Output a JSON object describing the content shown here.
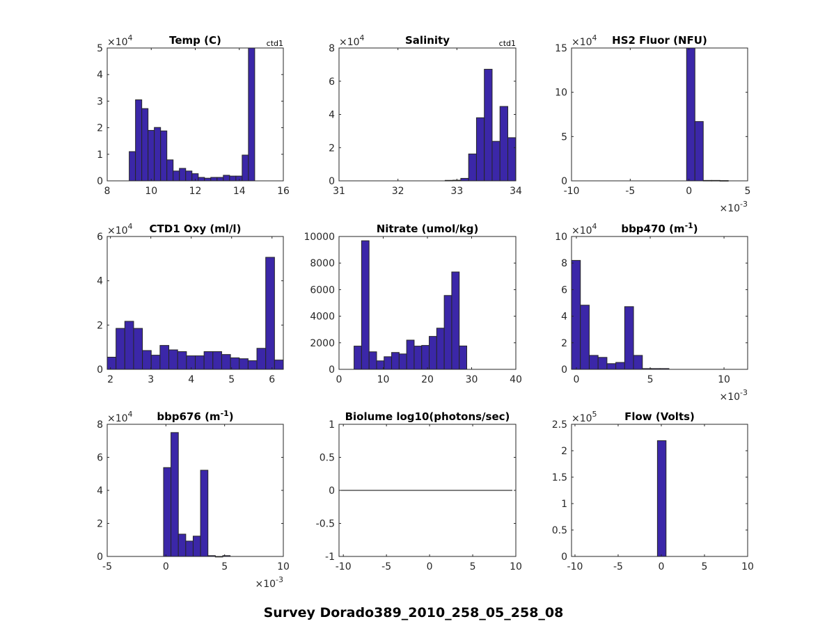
{
  "figure_title": "Survey Dorado389_2010_258_05_258_08",
  "bar_color": "#3b27a8",
  "edge_color": "#262626",
  "chart_data": [
    {
      "type": "bar",
      "title": "Temp (C)",
      "corner_tag": "ctd1",
      "xlim": [
        8,
        16
      ],
      "ylim": [
        0,
        5
      ],
      "y_multiplier": "×10",
      "y_exponent": "4",
      "x_multiplier": "",
      "x_exponent": "",
      "xticks": [
        8,
        10,
        12,
        14,
        16
      ],
      "xtick_labels": [
        "8",
        "10",
        "12",
        "14",
        "16"
      ],
      "yticks": [
        0,
        1,
        2,
        3,
        4,
        5
      ],
      "ytick_labels": [
        "0",
        "1",
        "2",
        "3",
        "4",
        "5"
      ],
      "bin_start": 9.0,
      "bin_width": 0.285,
      "values": [
        1.1,
        3.05,
        2.72,
        1.9,
        2.01,
        1.88,
        0.79,
        0.37,
        0.47,
        0.37,
        0.27,
        0.13,
        0.1,
        0.13,
        0.13,
        0.21,
        0.18,
        0.18,
        0.97,
        5.0
      ]
    },
    {
      "type": "bar",
      "title": "Salinity",
      "corner_tag": "ctd1",
      "xlim": [
        31,
        34
      ],
      "ylim": [
        0,
        8
      ],
      "y_multiplier": "×10",
      "y_exponent": "4",
      "x_multiplier": "",
      "x_exponent": "",
      "xticks": [
        31,
        32,
        33,
        34
      ],
      "xtick_labels": [
        "31",
        "32",
        "33",
        "34"
      ],
      "yticks": [
        0,
        2,
        4,
        6,
        8
      ],
      "ytick_labels": [
        "0",
        "2",
        "4",
        "6",
        "8"
      ],
      "bin_start": 32.8,
      "bin_width": 0.133,
      "values": [
        0.03,
        0.04,
        0.15,
        1.62,
        3.8,
        6.72,
        2.38,
        4.48,
        2.6
      ]
    },
    {
      "type": "bar",
      "title": "HS2 Fluor (NFU)",
      "corner_tag": "",
      "xlim": [
        -10,
        5
      ],
      "ylim": [
        0,
        15
      ],
      "y_multiplier": "×10",
      "y_exponent": "4",
      "x_multiplier": "×10",
      "x_exponent": "-3",
      "xticks": [
        -10,
        -5,
        0,
        5
      ],
      "xtick_labels": [
        "-10",
        "-5",
        "0",
        "5"
      ],
      "yticks": [
        0,
        5,
        10,
        15
      ],
      "ytick_labels": [
        "0",
        "5",
        "10",
        "15"
      ],
      "bin_start": -0.2,
      "bin_width": 0.71,
      "values": [
        15,
        6.7,
        0.05,
        0.05,
        0.03
      ]
    },
    {
      "type": "bar",
      "title": "CTD1 Oxy (ml/l)",
      "corner_tag": "",
      "xlim": [
        1.92,
        6.28
      ],
      "ylim": [
        0,
        6
      ],
      "y_multiplier": "×10",
      "y_exponent": "4",
      "x_multiplier": "",
      "x_exponent": "",
      "xticks": [
        2,
        3,
        4,
        5,
        6
      ],
      "xtick_labels": [
        "2",
        "3",
        "4",
        "5",
        "6"
      ],
      "yticks": [
        0,
        2,
        4,
        6
      ],
      "ytick_labels": [
        "0",
        "2",
        "4",
        "6"
      ],
      "bin_start": 1.92,
      "bin_width": 0.218,
      "values": [
        0.55,
        1.85,
        2.17,
        1.85,
        0.85,
        0.64,
        1.08,
        0.88,
        0.8,
        0.61,
        0.61,
        0.8,
        0.8,
        0.67,
        0.52,
        0.48,
        0.39,
        0.95,
        5.06,
        0.42
      ]
    },
    {
      "type": "bar",
      "title": "Nitrate (umol/kg)",
      "corner_tag": "",
      "xlim": [
        0,
        40
      ],
      "ylim": [
        0,
        10000
      ],
      "y_multiplier": "",
      "y_exponent": "",
      "x_multiplier": "",
      "x_exponent": "",
      "xticks": [
        0,
        10,
        20,
        30,
        40
      ],
      "xtick_labels": [
        "0",
        "10",
        "20",
        "30",
        "40"
      ],
      "yticks": [
        0,
        2000,
        4000,
        6000,
        8000,
        10000
      ],
      "ytick_labels": [
        "0",
        "2000",
        "4000",
        "6000",
        "8000",
        "10000"
      ],
      "bin_start": 3.4,
      "bin_width": 1.7,
      "values": [
        1750,
        9680,
        1320,
        640,
        950,
        1270,
        1160,
        2200,
        1750,
        1800,
        2480,
        3100,
        5560,
        7330,
        1760
      ]
    },
    {
      "type": "bar",
      "title": "bbp470 (m",
      "title_sup": "-1",
      "title_end": ")",
      "corner_tag": "",
      "xlim": [
        -0.33,
        11.6
      ],
      "ylim": [
        0,
        10
      ],
      "y_multiplier": "×10",
      "y_exponent": "4",
      "x_multiplier": "×10",
      "x_exponent": "-3",
      "xticks": [
        0,
        5,
        10
      ],
      "xtick_labels": [
        "0",
        "5",
        "10"
      ],
      "yticks": [
        0,
        2,
        4,
        6,
        8,
        10
      ],
      "ytick_labels": [
        "0",
        "2",
        "4",
        "6",
        "8",
        "10"
      ],
      "bin_start": -0.33,
      "bin_width": 0.6,
      "values": [
        8.2,
        4.83,
        1.05,
        0.9,
        0.43,
        0.52,
        4.72,
        1.05,
        0.06,
        0.06,
        0.06
      ]
    },
    {
      "type": "bar",
      "title": "bbp676 (m",
      "title_sup": "-1",
      "title_end": ")",
      "corner_tag": "",
      "xlim": [
        -5,
        10
      ],
      "ylim": [
        0,
        8
      ],
      "y_multiplier": "×10",
      "y_exponent": "4",
      "x_multiplier": "×10",
      "x_exponent": "-3",
      "xticks": [
        -5,
        0,
        5,
        10
      ],
      "xtick_labels": [
        "-5",
        "0",
        "5",
        "10"
      ],
      "yticks": [
        0,
        2,
        4,
        6,
        8
      ],
      "ytick_labels": [
        "0",
        "2",
        "4",
        "6",
        "8"
      ],
      "bin_start": -0.2,
      "bin_width": 0.63,
      "values": [
        5.38,
        7.5,
        1.35,
        0.93,
        1.23,
        5.22,
        0.05,
        0.0,
        0.05
      ]
    },
    {
      "type": "line",
      "title": "Biolume log10(photons/sec)",
      "corner_tag": "",
      "xlim": [
        -10.5,
        10
      ],
      "ylim": [
        -1,
        1
      ],
      "y_multiplier": "",
      "y_exponent": "",
      "x_multiplier": "",
      "x_exponent": "",
      "xticks": [
        -10,
        -5,
        0,
        5,
        10
      ],
      "xtick_labels": [
        "-10",
        "-5",
        "0",
        "5",
        "10"
      ],
      "yticks": [
        -1,
        -0.5,
        0,
        0.5,
        1
      ],
      "ytick_labels": [
        "-1",
        "-0.5",
        "0",
        "0.5",
        "1"
      ],
      "line_x": [
        -10.5,
        9.6
      ],
      "line_y": [
        0,
        0
      ]
    },
    {
      "type": "bar",
      "title": "Flow (Volts)",
      "corner_tag": "",
      "xlim": [
        -10.4,
        10
      ],
      "ylim": [
        0,
        2.5
      ],
      "y_multiplier": "×10",
      "y_exponent": "5",
      "x_multiplier": "",
      "x_exponent": "",
      "xticks": [
        -10,
        -5,
        0,
        5,
        10
      ],
      "xtick_labels": [
        "-10",
        "-5",
        "0",
        "5",
        "10"
      ],
      "yticks": [
        0,
        0.5,
        1,
        1.5,
        2,
        2.5
      ],
      "ytick_labels": [
        "0",
        "0.5",
        "1",
        "1.5",
        "2",
        "2.5"
      ],
      "bin_start": -0.45,
      "bin_width": 1.0,
      "values": [
        2.19
      ]
    }
  ]
}
